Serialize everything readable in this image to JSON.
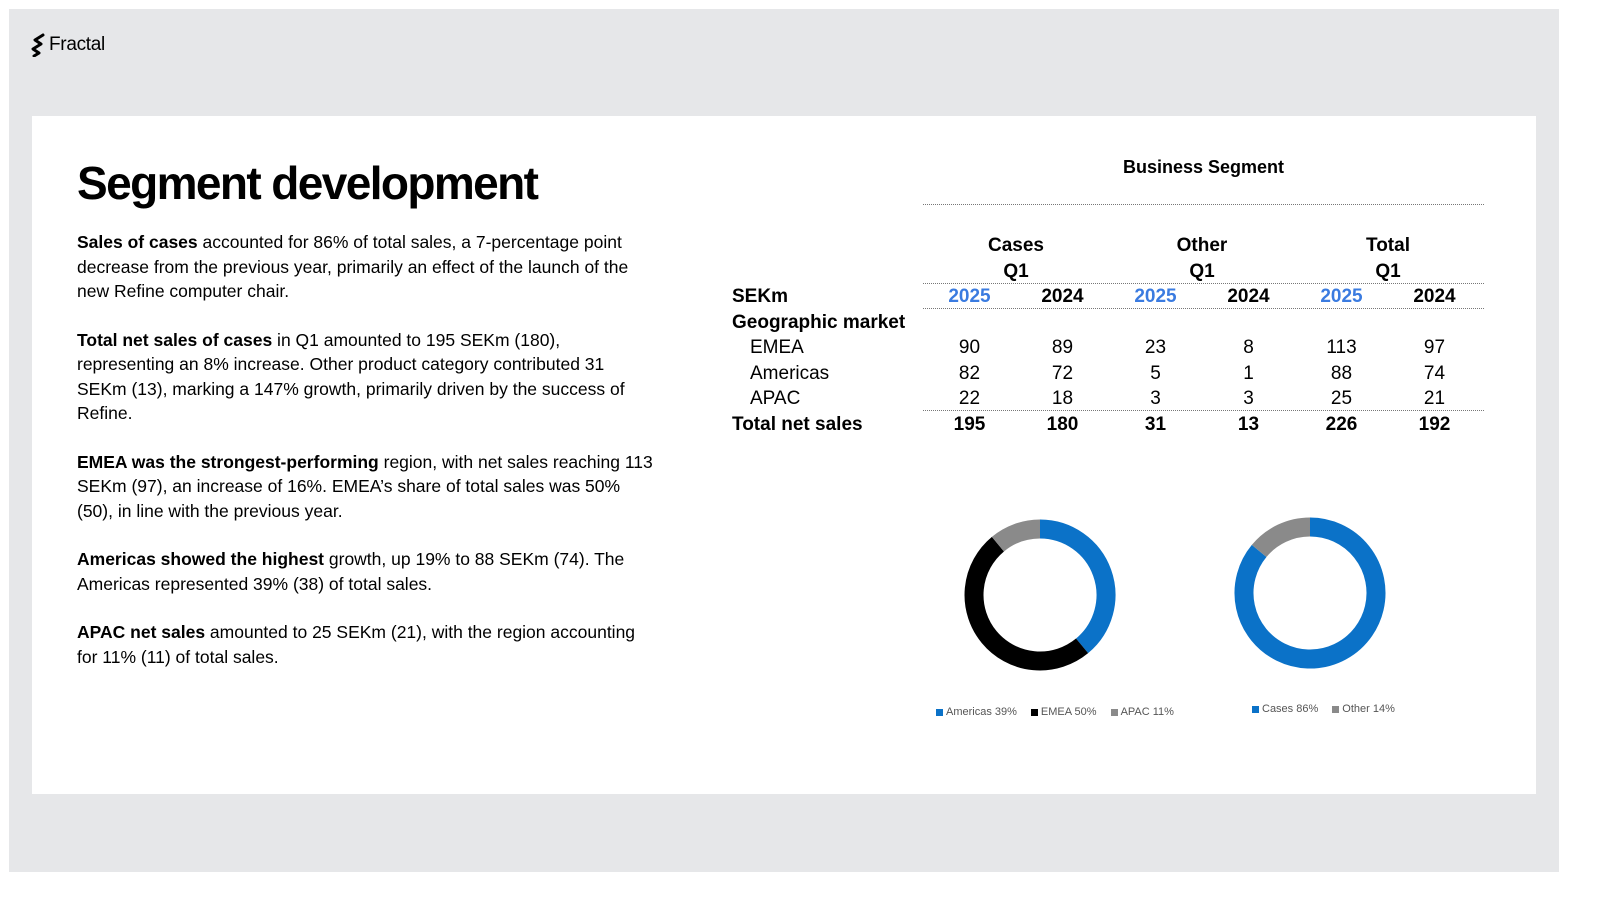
{
  "brand": {
    "name": "Fractal"
  },
  "title": "Segment development",
  "paragraphs": [
    {
      "bold": "Sales of cases",
      "rest": " accounted for 86% of total sales, a 7-percentage point decrease from the previous year, primarily an effect of the launch of the new Refine computer chair."
    },
    {
      "bold": "Total net sales of cases",
      "rest": " in Q1 amounted to 195 SEKm (180), representing an 8% increase. Other product category contributed 31 SEKm (13), marking a 147% growth, primarily driven by the success of Refine."
    },
    {
      "bold": "EMEA was the strongest-performing",
      "rest": " region, with net sales reaching 113 SEKm (97), an increase of 16%. EMEA’s share of total sales was 50% (50), in line with the previous year."
    },
    {
      "bold": "Americas showed the highest",
      "rest": " growth, up 19% to 88 SEKm (74). The Americas represented 39% (38) of total sales."
    },
    {
      "bold": "APAC net sales",
      "rest": " amounted to 25 SEKm (21), with the region accounting for 11% (11) of total sales."
    }
  ],
  "table": {
    "title": "Business Segment",
    "groups": [
      {
        "name": "Cases",
        "period": "Q1"
      },
      {
        "name": "Other",
        "period": "Q1"
      },
      {
        "name": "Total",
        "period": "Q1"
      }
    ],
    "unit_label": "SEKm",
    "years": [
      "2025",
      "2024",
      "2025",
      "2024",
      "2025",
      "2024"
    ],
    "section_label": "Geographic market",
    "rows": [
      {
        "label": "EMEA",
        "values": [
          "90",
          "89",
          "23",
          "8",
          "113",
          "97"
        ]
      },
      {
        "label": "Americas",
        "values": [
          "82",
          "72",
          "5",
          "1",
          "88",
          "74"
        ]
      },
      {
        "label": "APAC",
        "values": [
          "22",
          "18",
          "3",
          "3",
          "25",
          "21"
        ]
      }
    ],
    "total": {
      "label": "Total net sales",
      "values": [
        "195",
        "180",
        "31",
        "13",
        "226",
        "192"
      ]
    }
  },
  "chart_data": [
    {
      "type": "pie",
      "style": "donut",
      "categories": [
        "Americas 39%",
        "EMEA 50%",
        "APAC 11%"
      ],
      "values": [
        39,
        50,
        11
      ],
      "colors": [
        "#0b72c8",
        "#000000",
        "#8a8a8a"
      ],
      "legend": "bottom"
    },
    {
      "type": "pie",
      "style": "donut",
      "categories": [
        "Cases 86%",
        "Other 14%"
      ],
      "values": [
        86,
        14
      ],
      "colors": [
        "#0b72c8",
        "#8a8a8a"
      ],
      "legend": "bottom"
    }
  ]
}
